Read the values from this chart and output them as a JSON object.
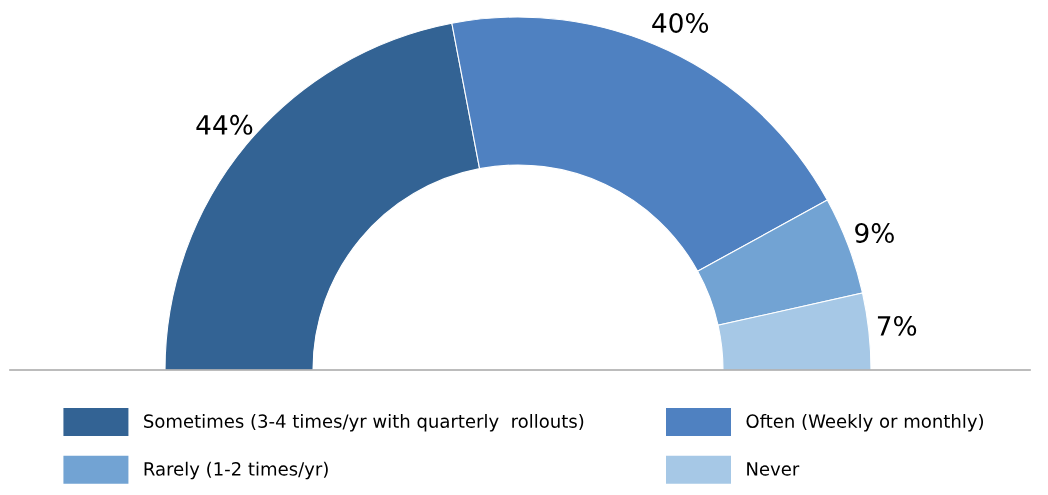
{
  "chart_data": {
    "type": "donut",
    "categories": [
      "Sometimes (3-4 times/yr with quarterly  rollouts)",
      "Often (Weekly or monthly)",
      "Rarely (1-2 times/yr)",
      "Never"
    ],
    "values": [
      44,
      40,
      9,
      7
    ],
    "colors": [
      "#336394",
      "#4f81c1",
      "#72a3d3",
      "#a6c8e6"
    ],
    "value_labels": [
      "44%",
      "40%",
      "9%",
      "7%"
    ],
    "legend": "bottom"
  }
}
